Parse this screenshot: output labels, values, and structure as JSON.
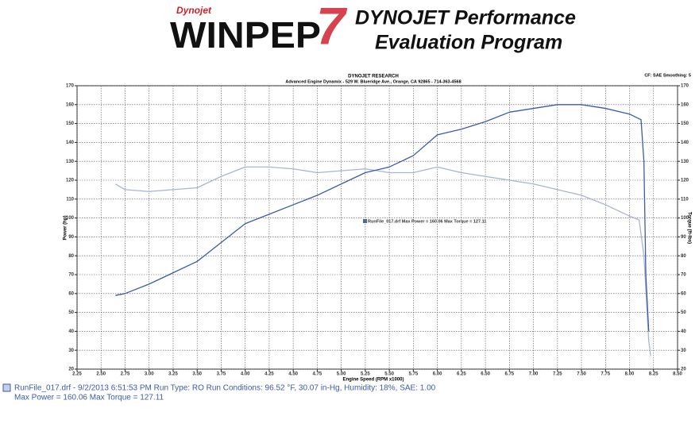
{
  "header": {
    "brand": "Dynojet",
    "product": "WINPEP",
    "version": "7",
    "line1": "DYNOJET Performance",
    "line2": "Evaluation Program"
  },
  "chart_data": {
    "type": "line",
    "title": "DYNOJET RESEARCH",
    "subtitle": "Advanced Engine Dynamix - 529 W. Blueridge Ave., Orange, CA 92865 - 714-363-4568",
    "note": "CF: SAE Smoothing: 5",
    "xlabel": "Engine Speed (RPM x1000)",
    "ylabel": "Power (hp)",
    "y2label": "Torque (ft-lbs)",
    "annotation": "RunFile_017.drf Max Power = 160.06   Max Torque = 127.11",
    "grid": true,
    "xlim": [
      2.25,
      8.5
    ],
    "xticks": [
      2.25,
      {
        "value": 2.5,
        "label": "2.50"
      },
      2.75,
      {
        "value": 3,
        "label": "3.00"
      },
      3.25,
      {
        "value": 3.5,
        "label": "3.50"
      },
      3.75,
      {
        "value": 4,
        "label": "4.00"
      },
      4.25,
      {
        "value": 4.5,
        "label": "4.50"
      },
      4.75,
      {
        "value": 5,
        "label": "5.00"
      },
      5.25,
      {
        "value": 5.5,
        "label": "5.50"
      },
      5.75,
      {
        "value": 6,
        "label": "6.00"
      },
      6.25,
      {
        "value": 6.5,
        "label": "6.50"
      },
      6.75,
      {
        "value": 7,
        "label": "7.00"
      },
      7.25,
      {
        "value": 7.5,
        "label": "7.50"
      },
      7.75,
      {
        "value": 8,
        "label": "8.00"
      },
      8.25,
      {
        "value": 8.5,
        "label": "8.50"
      }
    ],
    "ylim": [
      20,
      170
    ],
    "yticks": [
      20,
      30,
      40,
      50,
      60,
      70,
      80,
      90,
      100,
      110,
      120,
      130,
      140,
      150,
      160,
      170
    ],
    "y2lim": [
      20,
      170
    ],
    "y2ticks": [
      20,
      30,
      40,
      50,
      60,
      70,
      80,
      90,
      100,
      110,
      120,
      130,
      140,
      150,
      160,
      170
    ],
    "series": [
      {
        "color": "#3a5cab",
        "x": [
          2.65,
          2.75,
          3.0,
          3.25,
          3.5,
          3.75,
          4.0,
          4.25,
          4.5,
          4.75,
          5.0,
          5.25,
          5.5,
          5.75,
          6.0,
          6.25,
          6.5,
          6.75,
          7.0,
          7.25,
          7.5,
          7.75,
          8.0,
          8.08,
          8.12,
          8.15,
          8.17,
          8.2
        ],
        "values": [
          59,
          60,
          65,
          71,
          77,
          87,
          97,
          102,
          107,
          112,
          118,
          124,
          127,
          133,
          144,
          147,
          151,
          156,
          158,
          160,
          160,
          158,
          155,
          153,
          152,
          130,
          70,
          40
        ]
      },
      {
        "color": "#a9b4d3",
        "axis": "y2",
        "x": [
          2.65,
          2.75,
          3.0,
          3.25,
          3.5,
          3.75,
          4.0,
          4.25,
          4.5,
          4.75,
          5.0,
          5.25,
          5.5,
          5.75,
          6.0,
          6.25,
          6.5,
          6.75,
          7.0,
          7.25,
          7.5,
          7.75,
          8.0,
          8.1,
          8.15,
          8.2,
          8.22
        ],
        "values": [
          118,
          115,
          114,
          115,
          116,
          122,
          127,
          127,
          126,
          124,
          125,
          126,
          124,
          124,
          127,
          124,
          122,
          120,
          118,
          115,
          112,
          107,
          101,
          99,
          80,
          35,
          27
        ]
      }
    ]
  },
  "footer": {
    "line1": "RunFile_017.drf - 9/2/2013 6:51:53 PM  Run Type: RO  Run Conditions: 96.52 °F, 30.07 in-Hg,  Humidity:  18%, SAE: 1.00",
    "line2": "Max Power = 160.06  Max Torque = 127.11"
  }
}
